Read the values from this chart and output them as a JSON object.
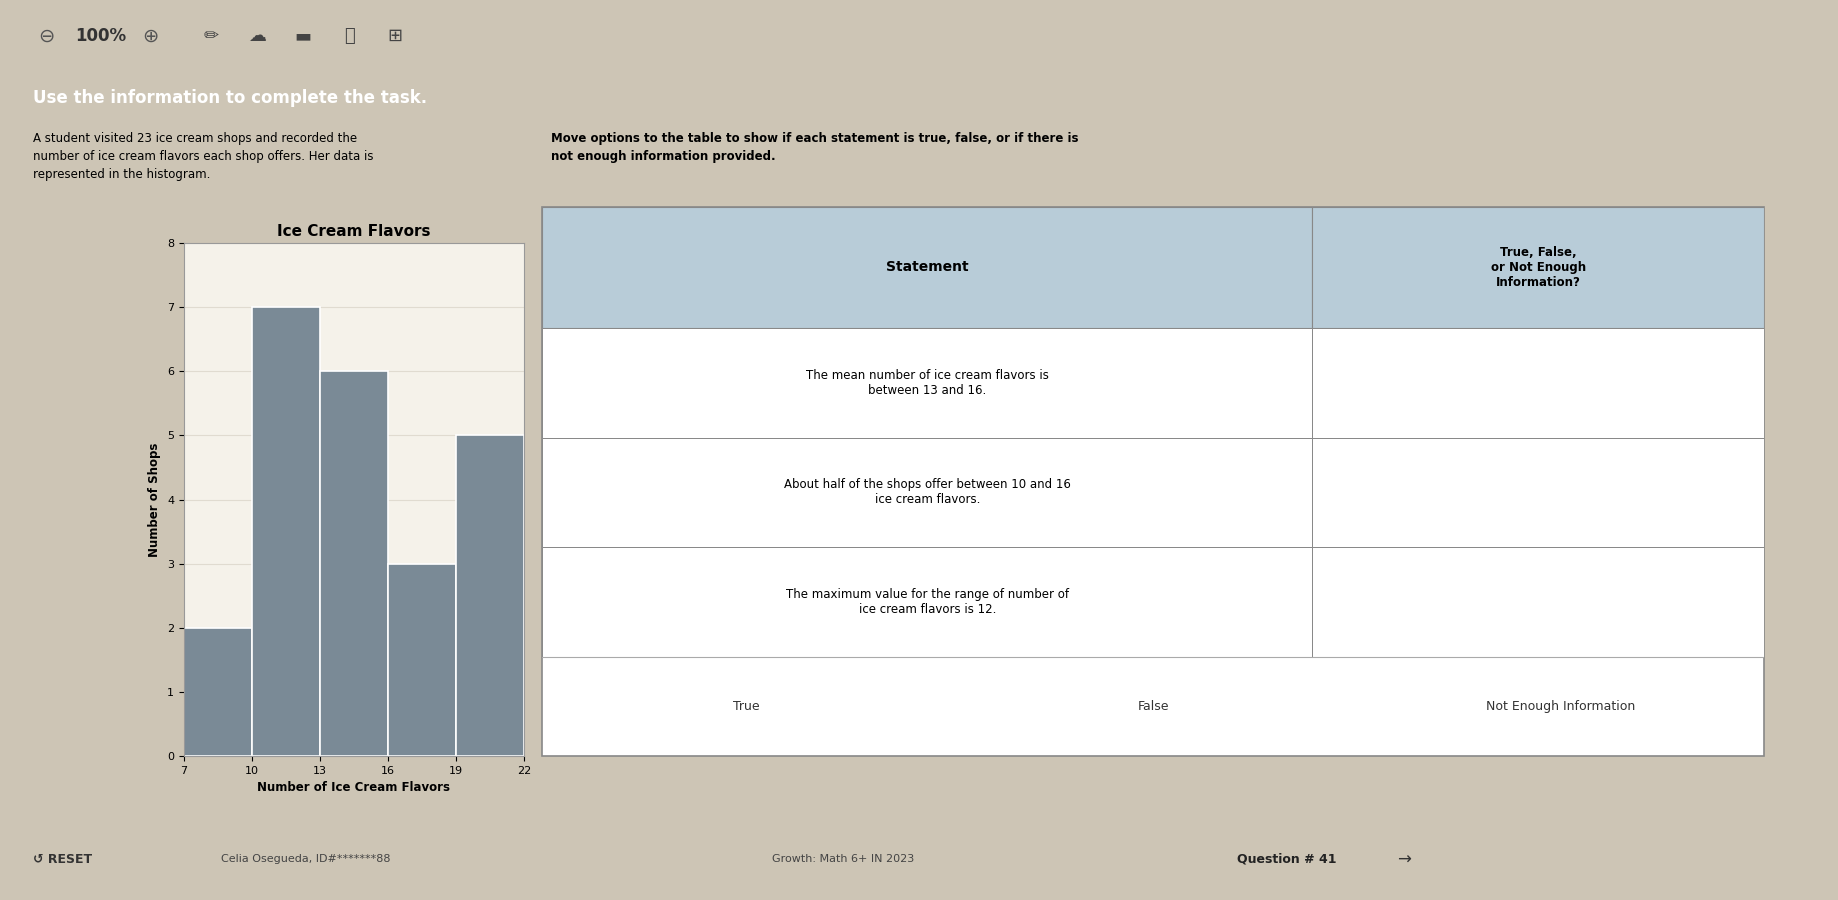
{
  "hist_title": "Ice Cream Flavors",
  "hist_xlabel": "Number of Ice Cream Flavors",
  "hist_ylabel": "Number of Shops",
  "bin_edges": [
    7,
    10,
    13,
    16,
    19,
    22
  ],
  "bar_heights": [
    2,
    7,
    6,
    3,
    5
  ],
  "bar_color": "#7a8a96",
  "bar_edgecolor": "#555555",
  "yticks": [
    0,
    1,
    2,
    3,
    4,
    5,
    6,
    7,
    8
  ],
  "xticks": [
    7,
    10,
    13,
    16,
    19,
    22
  ],
  "plot_bg": "#f2ede3",
  "page_bg": "#cdc5b5",
  "toolbar_bg": "#e8e4dc",
  "top_bar_color": "#2c4a6e",
  "top_bar_text": "Use the information to complete the task.",
  "left_text": "A student visited 23 ice cream shops and recorded the\nnumber of ice cream flavors each shop offers. Her data is\nrepresented in the histogram.",
  "right_text_bold": "Move options to the table to show if each statement is true, false, or if there is\nnot enough information provided.",
  "table_header_bg": "#b8ccd8",
  "table_header1": "Statement",
  "table_header2": "True, False,\nor Not Enough\nInformation?",
  "statements": [
    "The mean number of ice cream flavors is\nbetween 13 and 16.",
    "About half of the shops offer between 10 and 16\nice cream flavors.",
    "The maximum value for the range of number of\nice cream flavors is 12."
  ],
  "options_label": [
    "True",
    "False",
    "Not Enough Information"
  ],
  "bottom_bar_bg": "#b8b0a0",
  "bottom_left": "↺ RESET",
  "bottom_center": "Celia Osegueda, ID#*******88",
  "bottom_growth": "Growth: Math 6+ IN 2023",
  "bottom_question": "Question # 41",
  "grid_color": "#e0dbd0",
  "hist_frame_bg": "#f5f2ea"
}
